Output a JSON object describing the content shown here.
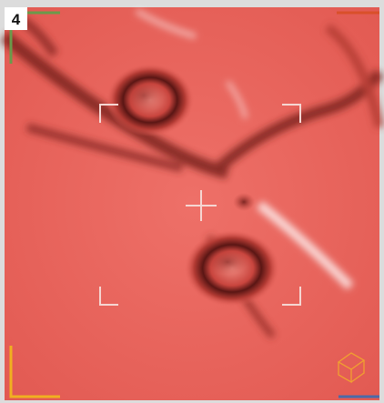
{
  "panel_label": "4"
}
